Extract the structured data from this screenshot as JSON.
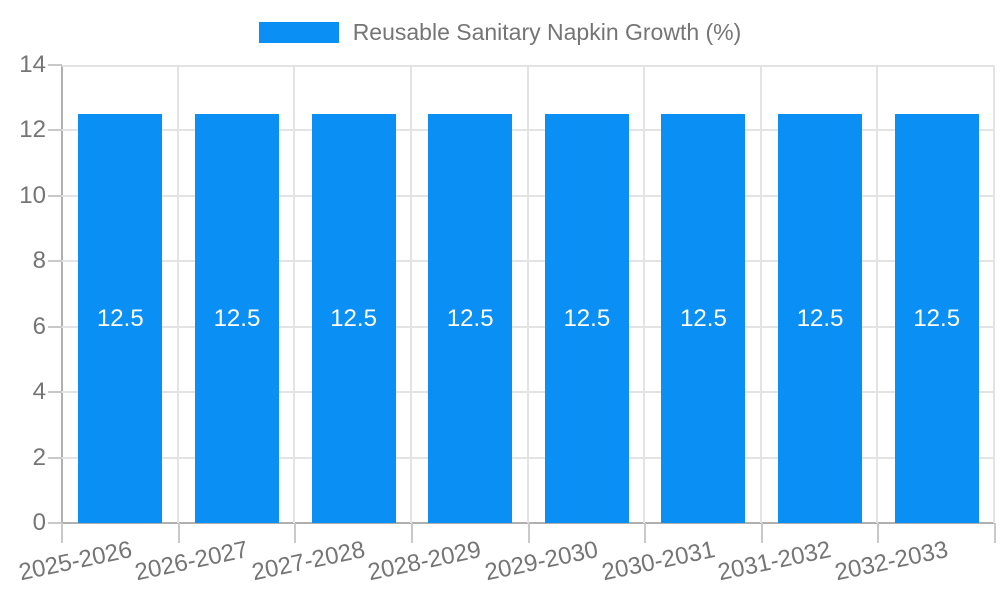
{
  "legend": {
    "label": "Reusable Sanitary Napkin Growth (%)"
  },
  "colors": {
    "bar": "#0a8ff5",
    "value_label": "#ffffff",
    "grid": "#e3e3e3",
    "axis": "#b0b0b0",
    "tick": "#c9c9c9",
    "text": "#757575",
    "background": "#ffffff"
  },
  "chart_data": {
    "type": "bar",
    "title": "",
    "legend_entries": [
      "Reusable Sanitary Napkin Growth (%)"
    ],
    "legend_position": "top-center",
    "categories": [
      "2025-2026",
      "2026-2027",
      "2027-2028",
      "2028-2029",
      "2029-2030",
      "2030-2031",
      "2031-2032",
      "2032-2033"
    ],
    "values": [
      12.5,
      12.5,
      12.5,
      12.5,
      12.5,
      12.5,
      12.5,
      12.5
    ],
    "value_labels": [
      "12.5",
      "12.5",
      "12.5",
      "12.5",
      "12.5",
      "12.5",
      "12.5",
      "12.5"
    ],
    "xlabel": "",
    "ylabel": "",
    "ylim": [
      0,
      14
    ],
    "yticks": [
      0,
      2,
      4,
      6,
      8,
      10,
      12,
      14
    ],
    "grid": true
  }
}
